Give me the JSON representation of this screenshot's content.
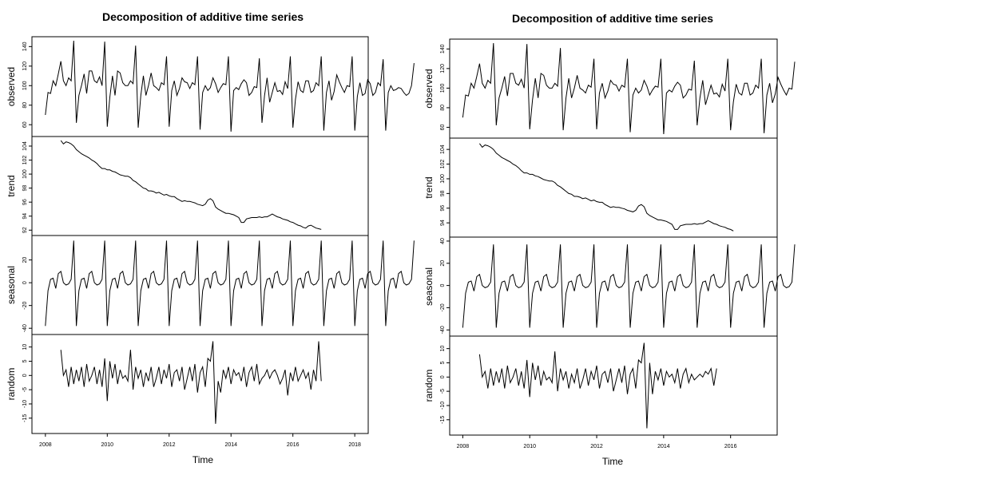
{
  "chart_data": [
    {
      "type": "line",
      "title": "Decomposition of additive time series",
      "xlabel": "Time",
      "x_start": 2008.0,
      "x_freq": 12,
      "xlim": [
        2008,
        2018
      ],
      "x_ticks": [
        2008,
        2010,
        2012,
        2014,
        2016,
        2018
      ],
      "panels": [
        {
          "name": "observed",
          "ylabel": "observed",
          "ylim": [
            52,
            146
          ],
          "y_ticks": [
            60,
            80,
            100,
            120,
            140
          ],
          "values": [
            70,
            93,
            92,
            105,
            100,
            112,
            125,
            105,
            100,
            108,
            105,
            146,
            62,
            90,
            100,
            112,
            92,
            115,
            115,
            105,
            103,
            109,
            100,
            145,
            58,
            88,
            110,
            90,
            115,
            113,
            103,
            100,
            100,
            105,
            102,
            141,
            57,
            90,
            110,
            90,
            100,
            113,
            100,
            98,
            95,
            103,
            101,
            130,
            58,
            95,
            105,
            90,
            97,
            108,
            104,
            103,
            97,
            103,
            101,
            130,
            55,
            93,
            100,
            95,
            98,
            108,
            102,
            93,
            98,
            102,
            101,
            130,
            53,
            95,
            98,
            96,
            102,
            106,
            103,
            90,
            93,
            99,
            98,
            128,
            62,
            90,
            108,
            83,
            93,
            103,
            94,
            95,
            91,
            104,
            97,
            130,
            57,
            86,
            104,
            95,
            93,
            105,
            105,
            93,
            95,
            103,
            100,
            130,
            54,
            93,
            105,
            85,
            94,
            111,
            104,
            98,
            93,
            100,
            99,
            130,
            54,
            89,
            103,
            90,
            92,
            106,
            102,
            90,
            93,
            103,
            100,
            127,
            54,
            93,
            100,
            95,
            96,
            98,
            97,
            93,
            90,
            92,
            100,
            123
          ]
        },
        {
          "name": "trend",
          "ylabel": "trend",
          "ylim": [
            91.8,
            104.8
          ],
          "y_ticks": [
            92,
            94,
            96,
            98,
            100,
            102,
            104
          ],
          "x_offset": 6,
          "values": [
            104.8,
            104.3,
            104.6,
            104.5,
            104.3,
            104.0,
            103.5,
            103.2,
            102.9,
            102.7,
            102.5,
            102.3,
            102.0,
            101.8,
            101.5,
            101.1,
            100.8,
            100.8,
            100.6,
            100.6,
            100.4,
            100.3,
            100.1,
            99.9,
            99.8,
            99.7,
            99.7,
            99.5,
            99.1,
            98.9,
            98.6,
            98.3,
            98.0,
            97.9,
            97.6,
            97.6,
            97.5,
            97.3,
            97.4,
            97.2,
            97.0,
            97.1,
            96.9,
            96.8,
            96.8,
            96.5,
            96.3,
            96.1,
            96.2,
            96.1,
            96.1,
            96.0,
            95.9,
            95.7,
            95.6,
            95.5,
            95.7,
            96.3,
            96.5,
            96.2,
            95.3,
            95.0,
            94.8,
            94.6,
            94.4,
            94.4,
            94.3,
            94.2,
            94.0,
            93.8,
            93.1,
            93.1,
            93.6,
            93.7,
            93.8,
            93.8,
            93.8,
            93.9,
            93.8,
            93.9,
            93.9,
            94.1,
            94.3,
            94.1,
            93.9,
            93.8,
            93.6,
            93.5,
            93.4,
            93.2,
            93.1,
            92.9,
            92.7,
            92.6,
            92.4,
            92.3,
            92.6,
            92.7,
            92.5,
            92.3,
            92.2,
            92.1
          ]
        },
        {
          "name": "seasonal",
          "ylabel": "seasonal",
          "ylim": [
            -42,
            38
          ],
          "y_ticks": [
            -40,
            -20,
            0,
            20
          ],
          "values": [
            -38,
            -7,
            3,
            4,
            -5,
            8,
            10,
            0,
            -2,
            -1,
            3,
            37,
            -38,
            -7,
            3,
            4,
            -5,
            8,
            10,
            0,
            -2,
            -1,
            3,
            37,
            -38,
            -7,
            3,
            4,
            -5,
            8,
            10,
            0,
            -2,
            -1,
            3,
            37,
            -38,
            -7,
            3,
            4,
            -5,
            8,
            10,
            0,
            -2,
            -1,
            3,
            37,
            -38,
            -7,
            3,
            4,
            -5,
            8,
            10,
            0,
            -2,
            -1,
            3,
            37,
            -38,
            -7,
            3,
            4,
            -5,
            8,
            10,
            0,
            -2,
            -1,
            3,
            37,
            -38,
            -7,
            3,
            4,
            -5,
            8,
            10,
            0,
            -2,
            -1,
            3,
            37,
            -38,
            -7,
            3,
            4,
            -5,
            8,
            10,
            0,
            -2,
            -1,
            3,
            37,
            -38,
            -7,
            3,
            4,
            -5,
            8,
            10,
            0,
            -2,
            -1,
            3,
            37,
            -38,
            -7,
            3,
            4,
            -5,
            8,
            10,
            0,
            -2,
            -1,
            3,
            37,
            -38,
            -7,
            3,
            4,
            -5,
            8,
            10,
            0,
            -2,
            -1,
            3,
            37,
            -38,
            -7,
            3,
            4,
            -5,
            8,
            10,
            0,
            -2,
            -1,
            3,
            37
          ]
        },
        {
          "name": "random",
          "ylabel": "random",
          "ylim": [
            -19,
            13
          ],
          "y_ticks": [
            -15,
            -10,
            -5,
            0,
            5,
            10
          ],
          "x_offset": 6,
          "values": [
            9,
            0,
            2,
            -4,
            3,
            -3,
            2,
            -2,
            3,
            -4,
            4,
            -2,
            0,
            3,
            -3,
            2,
            -4,
            6,
            -9,
            5,
            -1,
            4,
            -3,
            2,
            -1,
            0,
            -2,
            9,
            -5,
            3,
            -1,
            2,
            -4,
            1,
            -2,
            3,
            -4,
            -1,
            3,
            -3,
            2,
            -1,
            4,
            -4,
            1,
            2,
            -2,
            3,
            -5,
            -1,
            3,
            -2,
            4,
            -6,
            1,
            3,
            -4,
            6,
            5,
            12,
            -17,
            -2,
            -6,
            2,
            -1,
            3,
            -3,
            2,
            0,
            1,
            -2,
            3,
            -4,
            1,
            3,
            -2,
            4,
            -3,
            -1,
            0,
            2,
            -1,
            1,
            2,
            0,
            -3,
            -1,
            2,
            -7,
            1,
            -2,
            3,
            -2,
            0,
            2,
            -1,
            1,
            -5,
            2,
            -2,
            12,
            -2
          ]
        }
      ]
    },
    {
      "type": "line",
      "title": "Decomposition of additive time series",
      "xlabel": "Time",
      "x_start": 2008.0,
      "x_freq": 12,
      "xlim": [
        2008,
        2017
      ],
      "x_ticks": [
        2008,
        2010,
        2012,
        2014,
        2016
      ],
      "panels": [
        {
          "name": "observed",
          "ylabel": "observed",
          "ylim": [
            53,
            146
          ],
          "y_ticks": [
            60,
            80,
            100,
            120,
            140
          ],
          "values": [
            70,
            93,
            92,
            105,
            100,
            112,
            125,
            105,
            100,
            108,
            105,
            146,
            62,
            90,
            100,
            112,
            92,
            115,
            115,
            105,
            103,
            109,
            100,
            145,
            58,
            88,
            110,
            90,
            115,
            113,
            103,
            100,
            100,
            105,
            102,
            141,
            57,
            90,
            110,
            90,
            100,
            113,
            100,
            98,
            95,
            103,
            101,
            130,
            58,
            95,
            105,
            90,
            97,
            108,
            104,
            103,
            97,
            103,
            101,
            130,
            55,
            93,
            100,
            95,
            98,
            108,
            102,
            93,
            98,
            102,
            101,
            130,
            53,
            95,
            98,
            96,
            102,
            106,
            103,
            90,
            93,
            99,
            98,
            128,
            62,
            90,
            108,
            83,
            93,
            103,
            94,
            95,
            91,
            104,
            97,
            130,
            57,
            86,
            104,
            95,
            93,
            105,
            105,
            93,
            95,
            103,
            100,
            130,
            54,
            93,
            105,
            85,
            94,
            111,
            104,
            98,
            93,
            100,
            99,
            127
          ]
        },
        {
          "name": "trend",
          "ylabel": "trend",
          "ylim": [
            92.6,
            105.0
          ],
          "y_ticks": [
            94,
            96,
            98,
            100,
            102,
            104
          ],
          "x_offset": 6,
          "values": [
            104.8,
            104.3,
            104.6,
            104.5,
            104.3,
            104.0,
            103.5,
            103.2,
            102.9,
            102.7,
            102.5,
            102.3,
            102.0,
            101.8,
            101.5,
            101.1,
            100.8,
            100.8,
            100.6,
            100.6,
            100.4,
            100.3,
            100.1,
            99.9,
            99.8,
            99.7,
            99.7,
            99.5,
            99.1,
            98.9,
            98.6,
            98.3,
            98.0,
            97.9,
            97.6,
            97.6,
            97.5,
            97.3,
            97.4,
            97.2,
            97.0,
            97.1,
            96.9,
            96.8,
            96.8,
            96.5,
            96.3,
            96.1,
            96.2,
            96.1,
            96.1,
            96.0,
            95.9,
            95.7,
            95.6,
            95.5,
            95.7,
            96.3,
            96.5,
            96.2,
            95.3,
            95.0,
            94.8,
            94.6,
            94.4,
            94.4,
            94.3,
            94.2,
            94.0,
            93.8,
            93.1,
            93.1,
            93.6,
            93.7,
            93.8,
            93.8,
            93.8,
            93.9,
            93.8,
            93.9,
            93.9,
            94.1,
            94.3,
            94.1,
            93.9,
            93.8,
            93.6,
            93.5,
            93.4,
            93.2,
            93.1,
            92.9
          ]
        },
        {
          "name": "seasonal",
          "ylabel": "seasonal",
          "ylim": [
            -42,
            40
          ],
          "y_ticks": [
            -40,
            -20,
            0,
            20,
            40
          ],
          "values": [
            -38,
            -7,
            3,
            4,
            -5,
            8,
            10,
            0,
            -2,
            -1,
            3,
            37,
            -38,
            -7,
            3,
            4,
            -5,
            8,
            10,
            0,
            -2,
            -1,
            3,
            37,
            -38,
            -7,
            3,
            4,
            -5,
            8,
            10,
            0,
            -2,
            -1,
            3,
            37,
            -38,
            -7,
            3,
            4,
            -5,
            8,
            10,
            0,
            -2,
            -1,
            3,
            37,
            -38,
            -7,
            3,
            4,
            -5,
            8,
            10,
            0,
            -2,
            -1,
            3,
            37,
            -38,
            -7,
            3,
            4,
            -5,
            8,
            10,
            0,
            -2,
            -1,
            3,
            37,
            -38,
            -7,
            3,
            4,
            -5,
            8,
            10,
            0,
            -2,
            -1,
            3,
            37,
            -38,
            -7,
            3,
            4,
            -5,
            8,
            10,
            0,
            -2,
            -1,
            3,
            37,
            -38,
            -7,
            3,
            4,
            -5,
            8,
            10,
            0,
            -2,
            -1,
            3,
            37,
            -38,
            -7,
            3,
            4,
            -5,
            8,
            10,
            0,
            -2,
            -1,
            3,
            37
          ]
        },
        {
          "name": "random",
          "ylabel": "random",
          "ylim": [
            -19,
            13
          ],
          "y_ticks": [
            -15,
            -10,
            -5,
            0,
            5,
            10
          ],
          "x_offset": 6,
          "values": [
            8,
            0,
            2,
            -4,
            3,
            -3,
            2,
            -2,
            3,
            -4,
            4,
            -2,
            0,
            3,
            -3,
            2,
            -4,
            6,
            -7,
            5,
            -1,
            4,
            -3,
            2,
            -1,
            0,
            -2,
            9,
            -5,
            3,
            -1,
            2,
            -4,
            1,
            -2,
            3,
            -4,
            -1,
            3,
            -3,
            2,
            -1,
            4,
            -4,
            1,
            2,
            -2,
            3,
            -5,
            -1,
            3,
            -2,
            4,
            -6,
            1,
            3,
            -4,
            6,
            5,
            12,
            -18,
            5,
            -6,
            2,
            -1,
            3,
            -3,
            2,
            0,
            1,
            -2,
            3,
            -4,
            1,
            3,
            -2,
            1,
            -1,
            0,
            1,
            0,
            2,
            1,
            3,
            -3,
            3
          ]
        }
      ]
    }
  ]
}
